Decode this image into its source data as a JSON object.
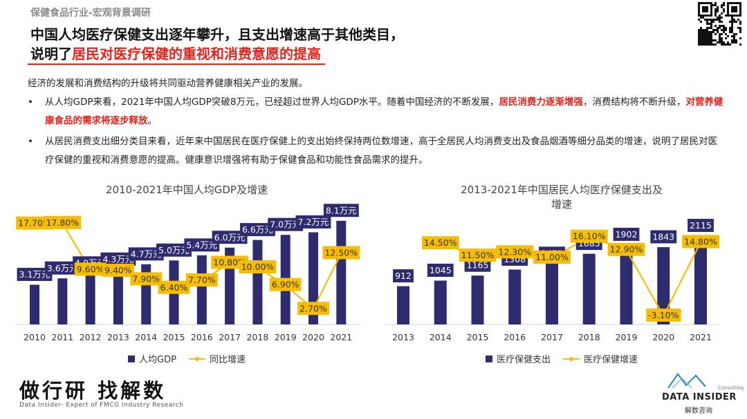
{
  "header": {
    "kicker": "保健食品行业-宏观背景调研",
    "title_line1": "中国人均医疗保健支出逐年攀升，且支出增速高于其他类目，",
    "title_line2_prefix": "说明了",
    "title_line2_highlight": "居民对医疗保健的重视和消费意愿的提高"
  },
  "body": {
    "intro": "经济的发展和消费结构的升级将共同驱动营养健康相关产业的发展。",
    "bullets": [
      [
        {
          "text": "从人均GDP来看，2021年中国人均GDP突破8万元，已经超过世界人均GDP水平。随着中国经济的不断发展，",
          "emphasis": false
        },
        {
          "text": "居民消费力逐渐增强",
          "emphasis": true
        },
        {
          "text": "，消费结构将不断升级，",
          "emphasis": false
        },
        {
          "text": "对营养健康食品的需求将逐步释放",
          "emphasis": true
        },
        {
          "text": "。",
          "emphasis": false
        }
      ],
      [
        {
          "text": "从居民消费支出细分类目来看，近年来中国居民在医疗保健上的支出始终保持两位数增速，高于全居民人均消费支出及食品烟酒等细分品类的增速，说明了居民对医疗保健的重视和消费意愿的提高。健康意识增强将有助于保健食品和功能性食品需求的提升。",
          "emphasis": false
        }
      ]
    ]
  },
  "chart_data": [
    {
      "type": "combo",
      "title": "2010-2021年中国人均GDP及增速",
      "categories": [
        "2010",
        "2011",
        "2012",
        "2013",
        "2014",
        "2015",
        "2016",
        "2017",
        "2018",
        "2019",
        "2020",
        "2021"
      ],
      "ylim": [
        0,
        9.6
      ],
      "y2lim": [
        0,
        21.6
      ],
      "series": [
        {
          "name": "人均GDP",
          "type": "bar",
          "color": "#2e2b6f",
          "values": [
            3.1,
            3.6,
            4.0,
            4.3,
            4.7,
            5.0,
            5.4,
            6.0,
            6.6,
            7.0,
            7.2,
            8.1
          ],
          "value_labels": [
            "3.1万元",
            "3.6万元",
            "4.0万元",
            "4.3万元",
            "4.7万元",
            "5.0万元",
            "5.4万元",
            "6.0万元",
            "6.6万元",
            "7.0万元",
            "7.2万元",
            "8.1万元"
          ]
        },
        {
          "name": "同比增速",
          "type": "line",
          "axis": "y2",
          "color": "#f7bd00",
          "values": [
            17.7,
            17.8,
            9.6,
            9.4,
            7.9,
            6.4,
            7.7,
            10.8,
            10.0,
            6.9,
            2.7,
            12.5
          ],
          "value_labels": [
            "17.70%",
            "17.80%",
            "9.60%",
            "9.40%",
            "7.90%",
            "6.40%",
            "7.70%",
            "10.80%",
            "10.00%",
            "6.90%",
            "2.70%",
            "12.50%"
          ]
        }
      ]
    },
    {
      "type": "combo",
      "title": "2013-2021年中国居民人均医疗保健支出及增速",
      "categories": [
        "2013",
        "2014",
        "2015",
        "2016",
        "2017",
        "2018",
        "2019",
        "2020",
        "2021"
      ],
      "ylim": [
        0,
        2930
      ],
      "y2lim": [
        -5.2,
        24.7
      ],
      "series": [
        {
          "name": "医疗保健支出",
          "type": "bar",
          "color": "#2e2b6f",
          "values": [
            912,
            1045,
            1165,
            1308,
            1451,
            1685,
            1902,
            1843,
            2115
          ]
        },
        {
          "name": "医疗保健增速",
          "type": "line",
          "axis": "y2",
          "color": "#f7bd00",
          "values": [
            null,
            14.5,
            11.5,
            12.3,
            11.0,
            16.1,
            12.9,
            -3.1,
            14.8
          ],
          "value_labels": [
            null,
            "14.50%",
            "11.50%",
            "12.30%",
            "11.00%",
            "16.10%",
            "12.90%",
            "-3.10%",
            "14.80%"
          ]
        }
      ]
    }
  ],
  "footer": {
    "slogan": "做行研 找解数",
    "tagline": "Data Insider- Expert of FMCG Industry Research",
    "brand": "DATA INSIDER",
    "brand_cn": "解数咨询",
    "consulting": "Consulting"
  }
}
